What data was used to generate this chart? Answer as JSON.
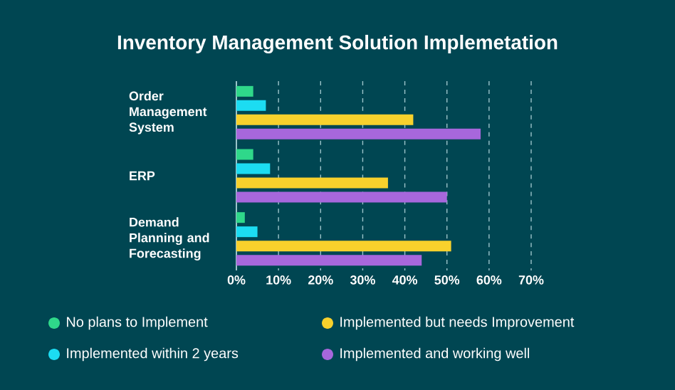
{
  "chart_data": {
    "type": "bar",
    "orientation": "horizontal",
    "title": "Inventory Management Solution Implemetation",
    "categories": [
      "Order Management System",
      "ERP",
      "Demand Planning and Forecasting"
    ],
    "series": [
      {
        "name": "No plans to Implement",
        "color": "#2fd88a",
        "values": [
          4,
          4,
          2
        ]
      },
      {
        "name": "Implemented within 2 years",
        "color": "#1cdcf2",
        "values": [
          7,
          8,
          5
        ]
      },
      {
        "name": "Implemented but needs Improvement",
        "color": "#f8d12c",
        "values": [
          42,
          36,
          51
        ]
      },
      {
        "name": "Implemented and working well",
        "color": "#a767dc",
        "values": [
          58,
          50,
          44
        ]
      }
    ],
    "xlim": [
      0,
      70
    ],
    "xticks": [
      {
        "value": 0,
        "label": "0%"
      },
      {
        "value": 10,
        "label": "10%"
      },
      {
        "value": 20,
        "label": "20%"
      },
      {
        "value": 30,
        "label": "30%"
      },
      {
        "value": 40,
        "label": "40%"
      },
      {
        "value": 50,
        "label": "50%"
      },
      {
        "value": 60,
        "label": "60%"
      },
      {
        "value": 70,
        "label": "70%"
      }
    ],
    "grid": "x",
    "legend": "bottom"
  }
}
